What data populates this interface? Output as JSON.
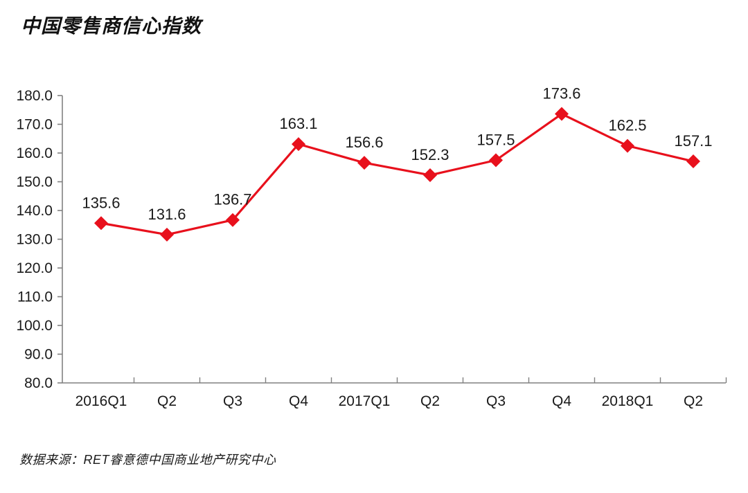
{
  "title": "中国零售商信心指数",
  "source": "数据来源：RET睿意德中国商业地产研究中心",
  "colors": {
    "line": "#e8101c",
    "marker": "#e8101c",
    "axis": "#808080",
    "text": "#1a1a1a"
  },
  "chart_data": {
    "type": "line",
    "title": "中国零售商信心指数",
    "categories": [
      "2016Q1",
      "Q2",
      "Q3",
      "Q4",
      "2017Q1",
      "Q2",
      "Q3",
      "Q4",
      "2018Q1",
      "Q2"
    ],
    "values": [
      135.6,
      131.6,
      136.7,
      163.1,
      156.6,
      152.3,
      157.5,
      173.6,
      162.5,
      157.1
    ],
    "data_labels": [
      "135.6",
      "131.6",
      "136.7",
      "163.1",
      "156.6",
      "152.3",
      "157.5",
      "173.6",
      "162.5",
      "157.1"
    ],
    "xlabel": "",
    "ylabel": "",
    "ylim": [
      80,
      180
    ],
    "ytick_step": 10,
    "ytick_labels": [
      "80.0",
      "90.0",
      "100.0",
      "110.0",
      "120.0",
      "130.0",
      "140.0",
      "150.0",
      "160.0",
      "170.0",
      "180.0"
    ],
    "grid": false,
    "legend": "none",
    "marker_shape": "diamond"
  }
}
